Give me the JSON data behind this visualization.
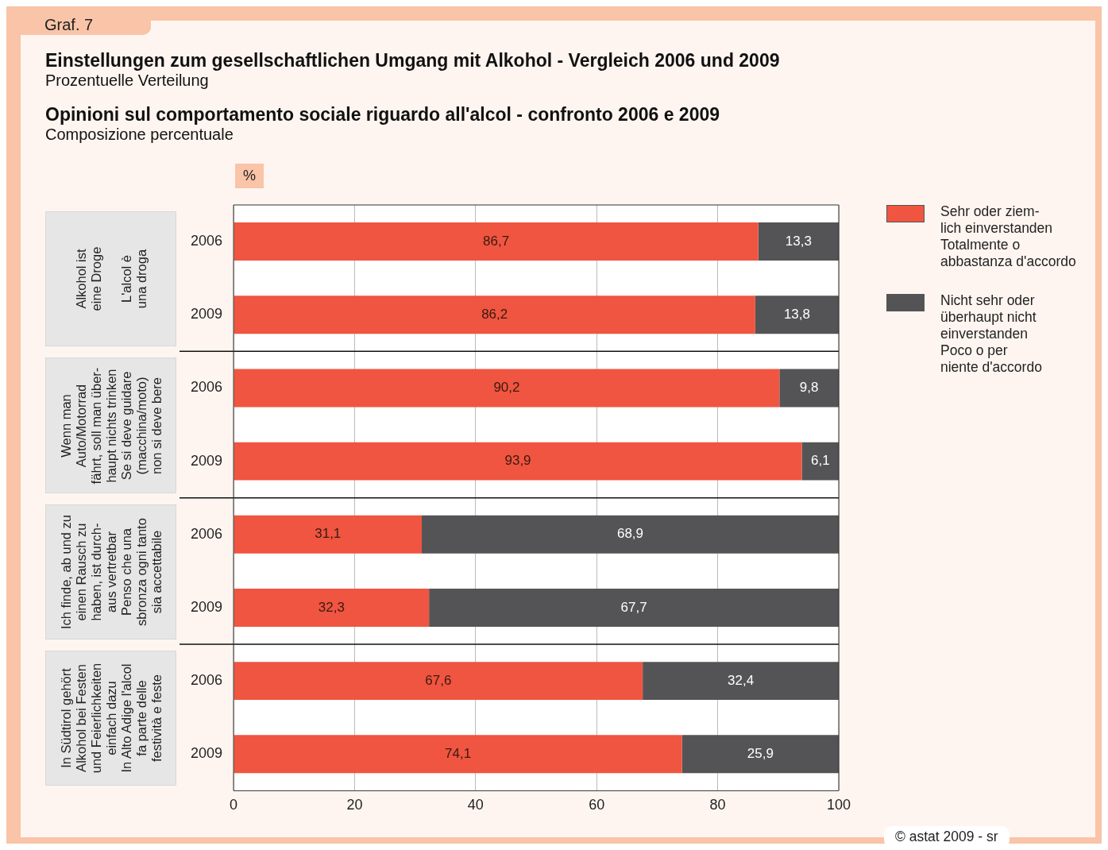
{
  "chart_data": {
    "type": "bar",
    "orientation": "horizontal",
    "stacked": true,
    "title": "Einstellungen zum gesellschaftlichen Umgang mit Alkohol - Vergleich 2006 und 2009",
    "subtitle": "Prozentuelle Verteilung",
    "xlabel": "%",
    "annotations": [
      "Graf. 7",
      "Opinioni sul comportamento sociale riguardo all'alcol - confronto 2006 e 2009",
      "Composizione percentuale",
      "Alkohol ist\neine Droge\n\nL'alcol è\nuna droga",
      "Wenn man\nAuto/Motorrad\nfährt, soll man über-\nhaupt nichts trinken\nSe si deve guidare\n(macchina/moto)\nnon si deve bere",
      "Ich finde, ab und zu\neinen Rausch zu\nhaben, ist durch-\naus vertretbar\nPenso che una\nsbronza ogni tanto\nsia accettabile",
      "In Südtirol gehört\nAlkohol bei Festen\nund Feierlichkeiten\neinfach dazu\nIn Alto Adige l'alcol\nfa parte delle\nfestività e feste",
      "© astat 2009 - sr"
    ],
    "categories": [
      "2006",
      "2009",
      "2006",
      "2009",
      "2006",
      "2009",
      "2006",
      "2009"
    ],
    "series": [
      {
        "name": "Sehr oder ziem-\nlich einverstanden\nTotalmente o\nabbastanza d'accordo",
        "color": "#ef5540",
        "values": [
          86.7,
          86.2,
          90.2,
          93.9,
          31.1,
          32.3,
          67.6,
          74.1
        ],
        "value_labels": [
          "86,7",
          "86,2",
          "90,2",
          "93,9",
          "31,1",
          "32,3",
          "67,6",
          "74,1"
        ]
      },
      {
        "name": "Nicht sehr oder\nüberhaupt nicht\neinverstanden\nPoco o per\nniente d'accordo",
        "color": "#545456",
        "values": [
          13.3,
          13.8,
          9.8,
          6.1,
          68.9,
          67.7,
          32.4,
          25.9
        ],
        "value_labels": [
          "13,3",
          "13,8",
          "9,8",
          "6,1",
          "68,9",
          "67,7",
          "32,4",
          "25,9"
        ]
      }
    ],
    "xlim": [
      0,
      100
    ],
    "xticks": [
      0,
      20,
      40,
      60,
      80,
      100
    ],
    "grid": "x",
    "legend": "right"
  }
}
